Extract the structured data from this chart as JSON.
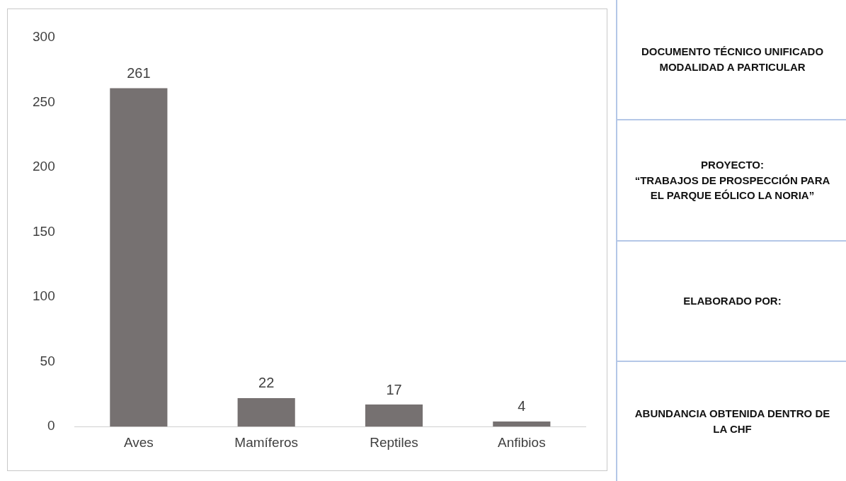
{
  "chart_data": {
    "type": "bar",
    "categories": [
      "Aves",
      "Mamíferos",
      "Reptiles",
      "Anfibios"
    ],
    "values": [
      261,
      22,
      17,
      4
    ],
    "color": "#767171",
    "ylim": [
      0,
      300
    ],
    "yticks": [
      0,
      50,
      100,
      150,
      200,
      250,
      300
    ],
    "grid": false,
    "legend": false,
    "data_labels": true,
    "annotations": [
      "DOCUMENTO TÉCNICO UNIFICADO MODALIDAD A PARTICULAR",
      "PROYECTO:\n“TRABAJOS DE PROSPECCIÓN PARA EL PARQUE EÓLICO LA NORIA”",
      "ELABORADO POR:",
      "ABUNDANCIA OBTENIDA DENTRO DE LA CHF"
    ]
  }
}
